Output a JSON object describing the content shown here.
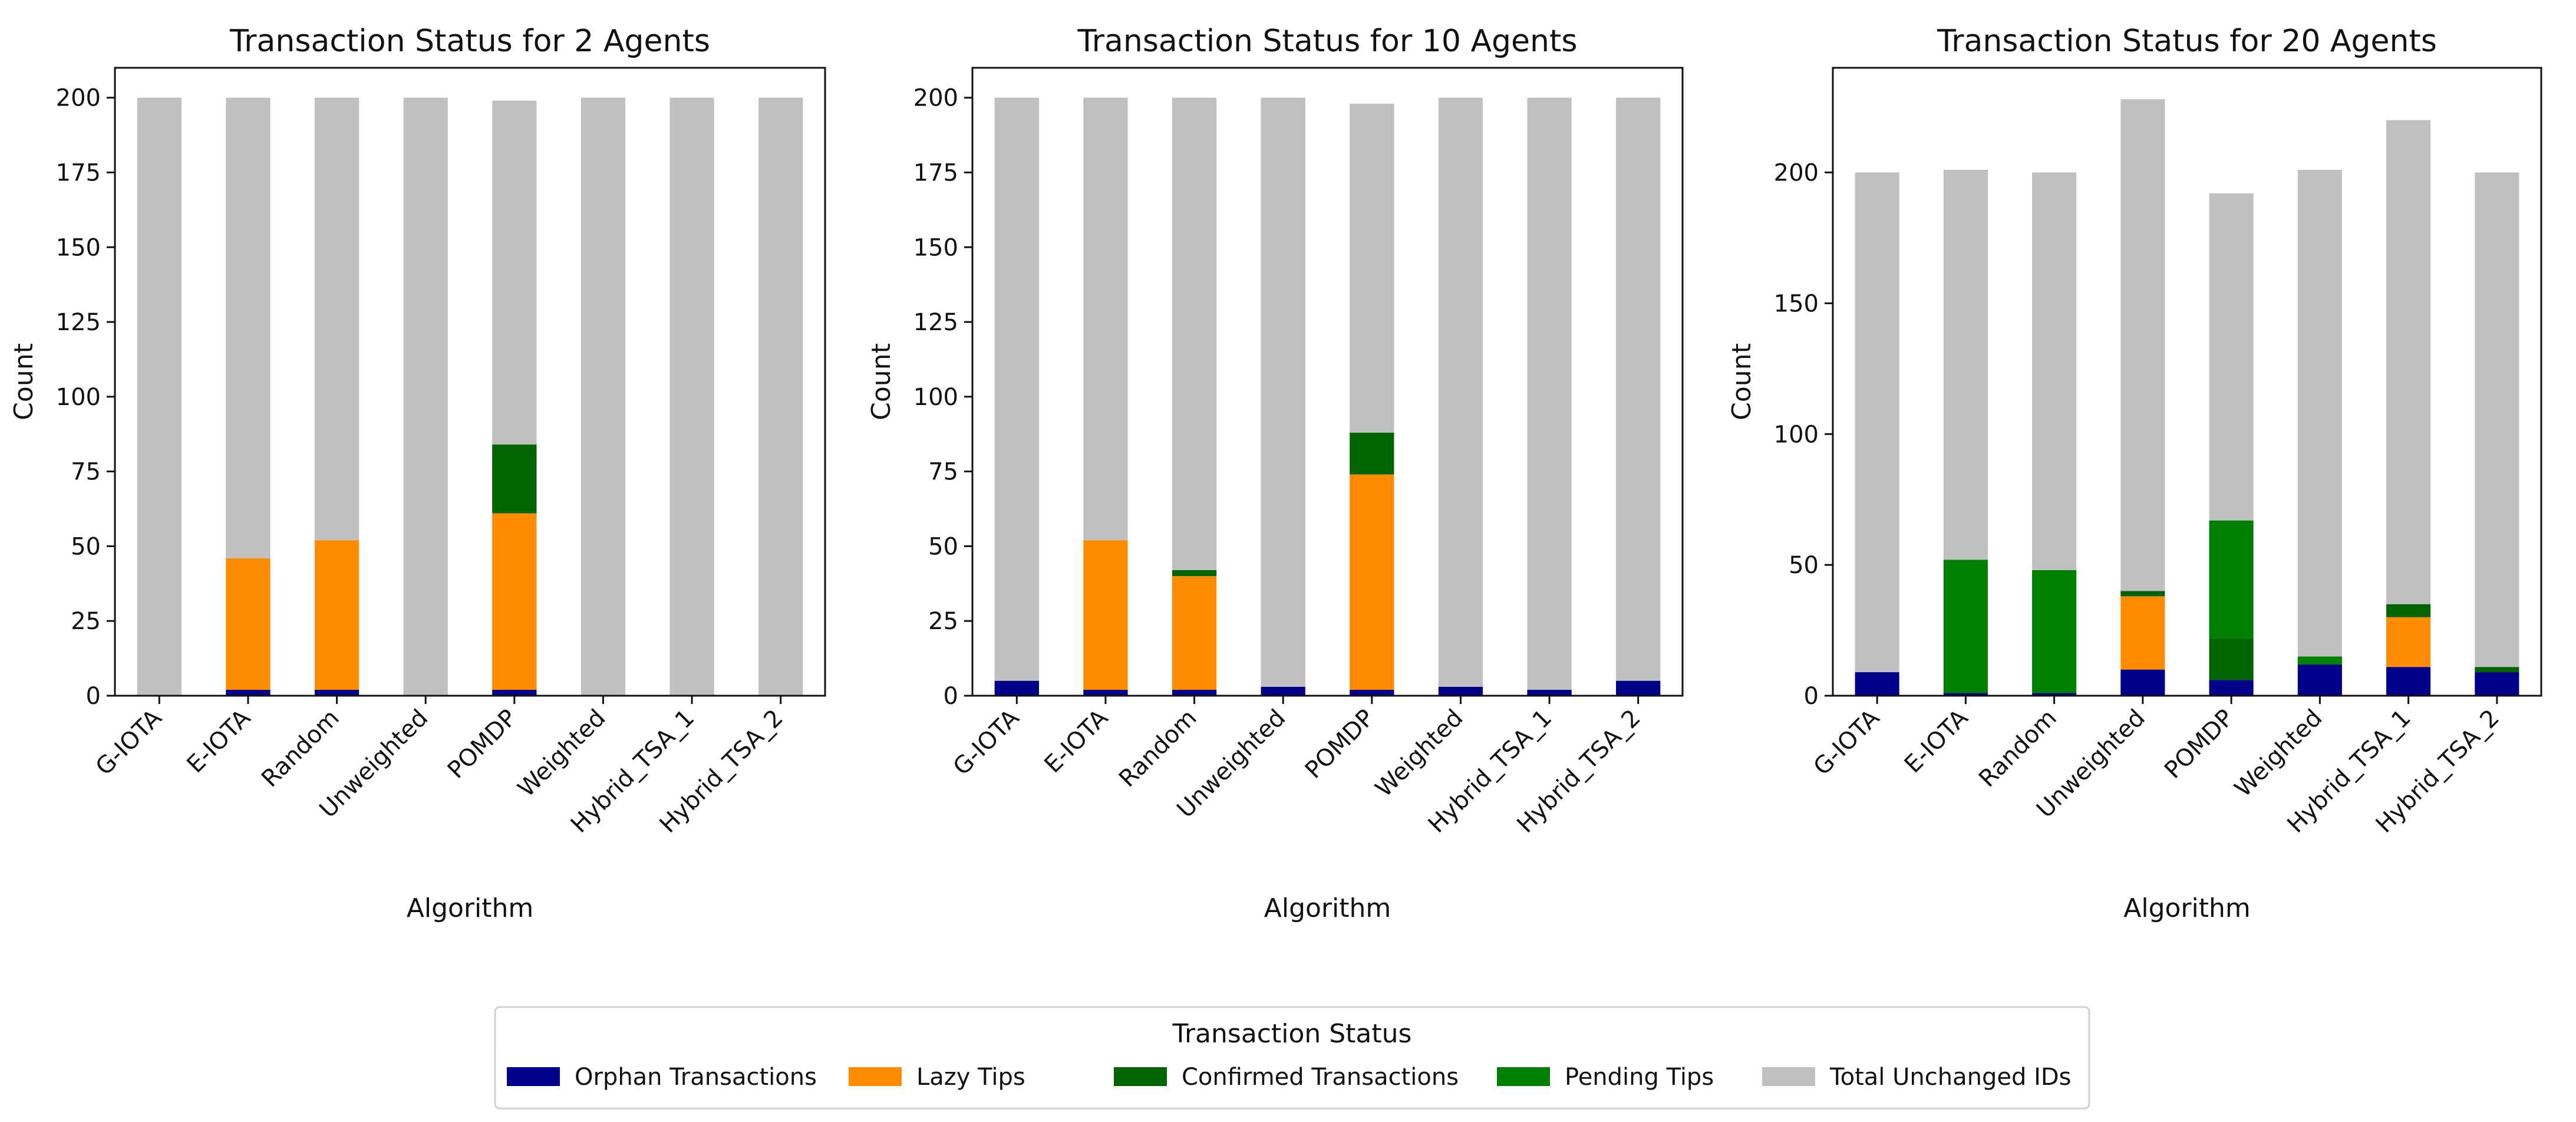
{
  "figure": {
    "background": "#ffffff"
  },
  "series_meta": [
    {
      "key": "orphan",
      "name": "Orphan Transactions",
      "color": "#00008b"
    },
    {
      "key": "lazy",
      "name": "Lazy Tips",
      "color": "#ff8c00"
    },
    {
      "key": "confirmed",
      "name": "Confirmed Transactions",
      "color": "#006400"
    },
    {
      "key": "pending",
      "name": "Pending Tips",
      "color": "#008000"
    },
    {
      "key": "unchanged",
      "name": "Total Unchanged IDs",
      "color": "#c0c0c0"
    }
  ],
  "legend": {
    "title": "Transaction Status",
    "position": "bottom-center",
    "labels": [
      "Orphan Transactions",
      "Lazy Tips",
      "Confirmed Transactions",
      "Pending Tips",
      "Total Unchanged IDs"
    ]
  },
  "chart_data": [
    {
      "type": "bar",
      "stacked": true,
      "title": "Transaction Status for 2 Agents",
      "xlabel": "Algorithm",
      "ylabel": "Count",
      "ylim": [
        0,
        210
      ],
      "yticks": [
        0,
        25,
        50,
        75,
        100,
        125,
        150,
        175,
        200
      ],
      "grid": false,
      "categories": [
        "G-IOTA",
        "E-IOTA",
        "Random",
        "Unweighted",
        "POMDP",
        "Weighted",
        "Hybrid_TSA_1",
        "Hybrid_TSA_2"
      ],
      "series": [
        {
          "name": "Orphan Transactions",
          "values": [
            0,
            2,
            2,
            0,
            2,
            0,
            0,
            0
          ]
        },
        {
          "name": "Lazy Tips",
          "values": [
            0,
            44,
            50,
            0,
            59,
            0,
            0,
            0
          ]
        },
        {
          "name": "Confirmed Transactions",
          "values": [
            0,
            0,
            0,
            0,
            23,
            0,
            0,
            0
          ]
        },
        {
          "name": "Pending Tips",
          "values": [
            0,
            0,
            0,
            0,
            0,
            0,
            0,
            0
          ]
        },
        {
          "name": "Total Unchanged IDs",
          "values": [
            200,
            154,
            148,
            200,
            115,
            200,
            200,
            200
          ]
        }
      ]
    },
    {
      "type": "bar",
      "stacked": true,
      "title": "Transaction Status for 10 Agents",
      "xlabel": "Algorithm",
      "ylabel": "Count",
      "ylim": [
        0,
        210
      ],
      "yticks": [
        0,
        25,
        50,
        75,
        100,
        125,
        150,
        175,
        200
      ],
      "grid": false,
      "categories": [
        "G-IOTA",
        "E-IOTA",
        "Random",
        "Unweighted",
        "POMDP",
        "Weighted",
        "Hybrid_TSA_1",
        "Hybrid_TSA_2"
      ],
      "series": [
        {
          "name": "Orphan Transactions",
          "values": [
            5,
            2,
            2,
            3,
            2,
            3,
            2,
            5
          ]
        },
        {
          "name": "Lazy Tips",
          "values": [
            0,
            50,
            38,
            0,
            72,
            0,
            0,
            0
          ]
        },
        {
          "name": "Confirmed Transactions",
          "values": [
            0,
            0,
            2,
            0,
            14,
            0,
            0,
            0
          ]
        },
        {
          "name": "Pending Tips",
          "values": [
            0,
            0,
            0,
            0,
            0,
            0,
            0,
            0
          ]
        },
        {
          "name": "Total Unchanged IDs",
          "values": [
            195,
            148,
            158,
            197,
            110,
            197,
            198,
            195
          ]
        }
      ]
    },
    {
      "type": "bar",
      "stacked": true,
      "title": "Transaction Status for 20 Agents",
      "xlabel": "Algorithm",
      "ylabel": "Count",
      "ylim": [
        0,
        240
      ],
      "yticks": [
        0,
        50,
        100,
        150,
        200
      ],
      "grid": false,
      "categories": [
        "G-IOTA",
        "E-IOTA",
        "Random",
        "Unweighted",
        "POMDP",
        "Weighted",
        "Hybrid_TSA_1",
        "Hybrid_TSA_2"
      ],
      "series": [
        {
          "name": "Orphan Transactions",
          "values": [
            9,
            1,
            1,
            10,
            6,
            12,
            11,
            9
          ]
        },
        {
          "name": "Lazy Tips",
          "values": [
            0,
            0,
            0,
            28,
            0,
            0,
            19,
            0
          ]
        },
        {
          "name": "Confirmed Transactions",
          "values": [
            0,
            0,
            0,
            2,
            16,
            0,
            5,
            2
          ]
        },
        {
          "name": "Pending Tips",
          "values": [
            0,
            51,
            47,
            0,
            45,
            3,
            0,
            0
          ]
        },
        {
          "name": "Total Unchanged IDs",
          "values": [
            191,
            149,
            152,
            188,
            125,
            186,
            185,
            189
          ]
        }
      ]
    }
  ]
}
